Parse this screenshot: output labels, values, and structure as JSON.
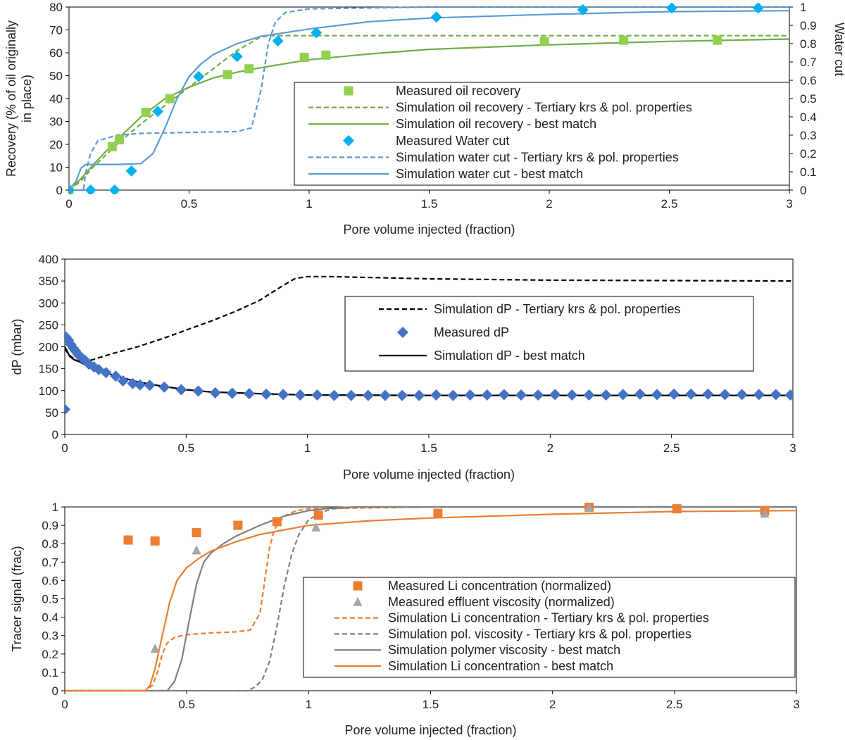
{
  "chart_data": [
    {
      "type": "scatter",
      "xlabel": "Pore volume injected (fraction)",
      "ylabel": "Recovery (% of oil originally in place)",
      "ylabel_lines": [
        "Recovery (% of oil originally",
        "in place)"
      ],
      "y2label": "Water cut",
      "xlim": [
        0,
        3
      ],
      "ylim": [
        0,
        80
      ],
      "y2lim": [
        0,
        1
      ],
      "xticks": [
        0,
        0.5,
        1,
        1.5,
        2,
        2.5,
        3
      ],
      "xtick_labels": [
        "0",
        "0.5",
        "1",
        "1.5",
        "2",
        "2.5",
        "3"
      ],
      "yticks": [
        0,
        10,
        20,
        30,
        40,
        50,
        60,
        70,
        80
      ],
      "ytick_labels": [
        "0",
        "10",
        "20",
        "30",
        "40",
        "50",
        "60",
        "70",
        "80"
      ],
      "y2ticks": [
        0,
        0.1,
        0.2,
        0.3,
        0.4,
        0.5,
        0.6,
        0.7,
        0.8,
        0.9,
        1
      ],
      "y2tick_labels": [
        "0",
        "0.1",
        "0.2",
        "0.3",
        "0.4",
        "0.5",
        "0.6",
        "0.7",
        "0.8",
        "0.9",
        "1"
      ],
      "legend_position": "center-right",
      "series": [
        {
          "name": "Measured oil recovery",
          "kind": "marker",
          "marker": "square",
          "color": "#92d050",
          "axis": "left",
          "x": [
            0,
            0.18,
            0.21,
            0.32,
            0.42,
            0.66,
            0.75,
            0.98,
            1.07,
            1.98,
            2.31,
            2.7
          ],
          "y": [
            0,
            19,
            22,
            34,
            40,
            50.5,
            53,
            58,
            59,
            65,
            65.5,
            65.5
          ]
        },
        {
          "name": "Simulation oil recovery - Tertiary krs & pol. properties",
          "kind": "line",
          "dash": "dashed",
          "color": "#70ad47",
          "axis": "left",
          "x": [
            0,
            0.05,
            0.1,
            0.2,
            0.3,
            0.4,
            0.5,
            0.6,
            0.7,
            0.8,
            0.85,
            0.9,
            1,
            1.5,
            2,
            3
          ],
          "y": [
            0,
            4,
            10,
            20,
            29,
            37,
            45,
            53,
            61,
            67,
            67.5,
            67.5,
            67.5,
            67.5,
            67.5,
            67.5
          ]
        },
        {
          "name": "Simulation oil recovery - best match",
          "kind": "line",
          "dash": "solid",
          "color": "#70ad47",
          "axis": "left",
          "x": [
            0,
            0.05,
            0.1,
            0.2,
            0.3,
            0.4,
            0.5,
            0.6,
            0.7,
            0.8,
            1,
            1.25,
            1.5,
            2,
            2.5,
            3
          ],
          "y": [
            0,
            5,
            11,
            22,
            32,
            40,
            45,
            49,
            51.5,
            53.5,
            57,
            59.5,
            61.5,
            63.5,
            65,
            66
          ]
        },
        {
          "name": "Measured Water cut",
          "kind": "marker",
          "marker": "diamond",
          "color": "#00b0f0",
          "axis": "right",
          "x": [
            0,
            0.09,
            0.19,
            0.26,
            0.37,
            0.54,
            0.7,
            0.87,
            1.03,
            1.53,
            2.14,
            2.51,
            2.87
          ],
          "y": [
            0,
            0,
            0,
            0.105,
            0.43,
            0.62,
            0.73,
            0.815,
            0.86,
            0.945,
            0.985,
            0.995,
            0.995
          ]
        },
        {
          "name": "Simulation water cut - Tertiary krs & pol. properties",
          "kind": "line",
          "dash": "dashed",
          "color": "#5b9bd5",
          "axis": "right",
          "x": [
            0,
            0.06,
            0.07,
            0.09,
            0.12,
            0.2,
            0.3,
            0.5,
            0.7,
            0.76,
            0.8,
            0.83,
            0.86,
            0.9,
            1,
            1.5,
            3
          ],
          "y": [
            0,
            0,
            0.1,
            0.2,
            0.27,
            0.3,
            0.31,
            0.315,
            0.32,
            0.34,
            0.55,
            0.8,
            0.92,
            0.97,
            0.99,
            1,
            1
          ]
        },
        {
          "name": "Simulation water cut - best match",
          "kind": "line",
          "dash": "solid",
          "color": "#5b9bd5",
          "axis": "right",
          "x": [
            0,
            0.03,
            0.05,
            0.07,
            0.1,
            0.2,
            0.3,
            0.35,
            0.4,
            0.45,
            0.5,
            0.55,
            0.6,
            0.7,
            0.8,
            1,
            1.25,
            1.5,
            2,
            2.5,
            3
          ],
          "y": [
            0,
            0.05,
            0.12,
            0.14,
            0.14,
            0.14,
            0.145,
            0.2,
            0.34,
            0.5,
            0.62,
            0.69,
            0.74,
            0.8,
            0.84,
            0.88,
            0.92,
            0.94,
            0.96,
            0.975,
            0.98
          ]
        }
      ]
    },
    {
      "type": "scatter",
      "xlabel": "Pore volume injected (fraction)",
      "ylabel": "dP (mbar)",
      "xlim": [
        0,
        3
      ],
      "ylim": [
        0,
        400
      ],
      "xticks": [
        0,
        0.5,
        1,
        1.5,
        2,
        2.5,
        3
      ],
      "xtick_labels": [
        "0",
        "0.5",
        "1",
        "1.5",
        "2",
        "2.5",
        "3"
      ],
      "yticks": [
        0,
        50,
        100,
        150,
        200,
        250,
        300,
        350,
        400
      ],
      "ytick_labels": [
        "0",
        "50",
        "100",
        "150",
        "200",
        "250",
        "300",
        "350",
        "400"
      ],
      "legend_position": "center-right",
      "series": [
        {
          "name": "Simulation dP - Tertiary krs & pol. properties",
          "kind": "line",
          "dash": "dashed",
          "color": "#000000",
          "x": [
            0,
            0.02,
            0.05,
            0.08,
            0.1,
            0.2,
            0.3,
            0.4,
            0.5,
            0.6,
            0.7,
            0.8,
            0.9,
            0.95,
            1,
            1.1,
            1.5,
            2,
            2.5,
            3
          ],
          "y": [
            195,
            180,
            168,
            165,
            168,
            185,
            200,
            218,
            238,
            258,
            280,
            305,
            340,
            356,
            360,
            360,
            355,
            352,
            351,
            350
          ]
        },
        {
          "name": "Measured dP",
          "kind": "marker",
          "marker": "diamond",
          "color": "#4472c4",
          "x": [
            0,
            0.005,
            0.015,
            0.025,
            0.035,
            0.045,
            0.055,
            0.07,
            0.085,
            0.1,
            0.12,
            0.14,
            0.17,
            0.21,
            0.24,
            0.28,
            0.31,
            0.35,
            0.41,
            0.48,
            0.55,
            0.62,
            0.69,
            0.76,
            0.83,
            0.9,
            0.97,
            1.04,
            1.11,
            1.18,
            1.25,
            1.32,
            1.39,
            1.46,
            1.53,
            1.6,
            1.67,
            1.74,
            1.81,
            1.88,
            1.95,
            2.02,
            2.09,
            2.16,
            2.23,
            2.3,
            2.37,
            2.44,
            2.51,
            2.58,
            2.65,
            2.72,
            2.79,
            2.86,
            2.93,
            2.99
          ],
          "y": [
            57,
            222,
            215,
            205,
            197,
            190,
            182,
            175,
            168,
            160,
            154,
            148,
            141,
            133,
            122,
            116,
            113,
            112,
            108,
            102,
            99,
            95,
            94,
            93,
            92,
            91,
            90,
            90,
            89,
            89,
            89,
            89,
            89,
            89,
            90,
            89,
            90,
            90,
            91,
            90,
            90,
            91,
            90,
            90,
            90,
            91,
            92,
            91,
            92,
            92,
            92,
            91,
            91,
            91,
            91,
            90
          ]
        },
        {
          "name": "Simulation dP - best match",
          "kind": "line",
          "dash": "solid",
          "color": "#000000",
          "x": [
            0,
            0.01,
            0.02,
            0.04,
            0.06,
            0.08,
            0.1,
            0.15,
            0.2,
            0.3,
            0.4,
            0.5,
            0.6,
            0.8,
            1,
            1.5,
            2,
            2.5,
            3
          ],
          "y": [
            200,
            190,
            178,
            170,
            166,
            160,
            155,
            145,
            135,
            120,
            110,
            102,
            97,
            93,
            90,
            89,
            89,
            89,
            89
          ]
        }
      ]
    },
    {
      "type": "scatter",
      "xlabel": "Pore volume injected (fraction)",
      "ylabel": "Tracer signal (frac)",
      "xlim": [
        0,
        3
      ],
      "ylim": [
        0,
        1
      ],
      "xticks": [
        0,
        0.5,
        1,
        1.5,
        2,
        2.5,
        3
      ],
      "xtick_labels": [
        "0",
        "0.5",
        "1",
        "1.5",
        "2",
        "2.5",
        "3"
      ],
      "yticks": [
        0,
        0.1,
        0.2,
        0.3,
        0.4,
        0.5,
        0.6,
        0.7,
        0.8,
        0.9,
        1
      ],
      "ytick_labels": [
        "0",
        "0.1",
        "0.2",
        "0.3",
        "0.4",
        "0.5",
        "0.6",
        "0.7",
        "0.8",
        "0.9",
        "1"
      ],
      "legend_position": "center-right",
      "series": [
        {
          "name": "Measured Li concentration (normalized)",
          "kind": "marker",
          "marker": "square",
          "color": "#ed7d31",
          "x": [
            0.26,
            0.37,
            0.54,
            0.71,
            0.87,
            1.04,
            1.53,
            2.15,
            2.51,
            2.87
          ],
          "y": [
            0.82,
            0.815,
            0.86,
            0.9,
            0.92,
            0.955,
            0.965,
            1,
            0.99,
            0.98
          ]
        },
        {
          "name": "Measured effluent viscosity (normalized)",
          "kind": "marker",
          "marker": "triangle",
          "color": "#a5a5a5",
          "x": [
            0.37,
            0.54,
            1.03,
            2.15,
            2.87
          ],
          "y": [
            0.23,
            0.765,
            0.89,
            0.995,
            0.965
          ]
        },
        {
          "name": "Simulation Li concentration - Tertiary krs & pol. properties",
          "kind": "line",
          "dash": "dashed",
          "color": "#ed7d31",
          "x": [
            0,
            0.33,
            0.36,
            0.38,
            0.4,
            0.42,
            0.45,
            0.5,
            0.6,
            0.7,
            0.76,
            0.8,
            0.82,
            0.84,
            0.86,
            0.9,
            0.95,
            1,
            1.5,
            3
          ],
          "y": [
            0,
            0,
            0.03,
            0.1,
            0.2,
            0.26,
            0.29,
            0.305,
            0.315,
            0.32,
            0.33,
            0.42,
            0.6,
            0.78,
            0.88,
            0.95,
            0.98,
            0.99,
            1,
            1
          ]
        },
        {
          "name": "Simulation pol. viscosity - Tertiary krs & pol. properties",
          "kind": "line",
          "dash": "dashed",
          "color": "#7f7f7f",
          "x": [
            0,
            0.75,
            0.78,
            0.81,
            0.84,
            0.87,
            0.9,
            0.93,
            0.96,
            1,
            1.05,
            1.1,
            1.2,
            1.5,
            3
          ],
          "y": [
            0,
            0,
            0.02,
            0.06,
            0.16,
            0.35,
            0.57,
            0.74,
            0.85,
            0.93,
            0.97,
            0.99,
            1,
            1,
            1
          ]
        },
        {
          "name": "Simulation polymer viscosity - best match",
          "kind": "line",
          "dash": "solid",
          "color": "#7f7f7f",
          "x": [
            0,
            0.42,
            0.45,
            0.48,
            0.51,
            0.54,
            0.57,
            0.6,
            0.65,
            0.7,
            0.8,
            0.9,
            1,
            1.1,
            1.2,
            1.5,
            3
          ],
          "y": [
            0,
            0,
            0.05,
            0.17,
            0.38,
            0.58,
            0.7,
            0.75,
            0.8,
            0.84,
            0.9,
            0.95,
            0.98,
            0.995,
            1,
            1,
            1
          ]
        },
        {
          "name": "Simulation Li concentration - best match",
          "kind": "line",
          "dash": "solid",
          "color": "#ed7d31",
          "x": [
            0,
            0.33,
            0.35,
            0.37,
            0.4,
            0.43,
            0.46,
            0.5,
            0.55,
            0.6,
            0.7,
            0.8,
            1,
            1.25,
            1.5,
            2,
            2.5,
            3
          ],
          "y": [
            0,
            0,
            0.03,
            0.12,
            0.3,
            0.48,
            0.6,
            0.67,
            0.72,
            0.76,
            0.81,
            0.85,
            0.9,
            0.925,
            0.94,
            0.96,
            0.975,
            0.98
          ]
        }
      ]
    }
  ]
}
